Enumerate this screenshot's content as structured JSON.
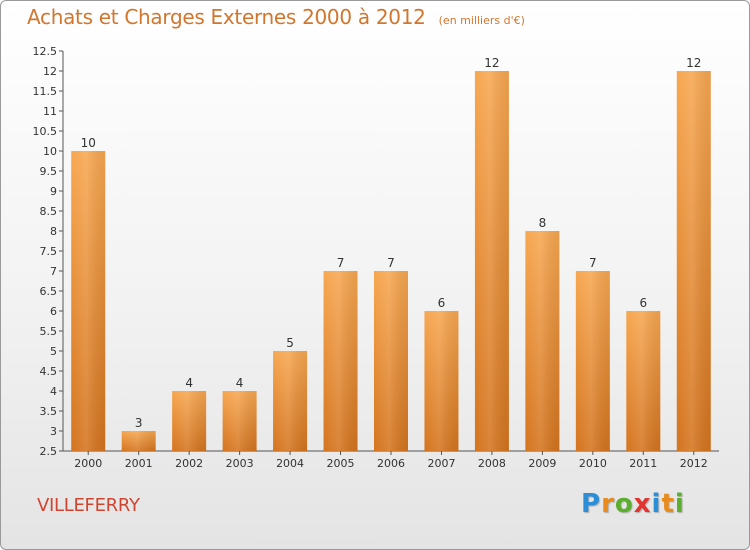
{
  "title": "Achats et Charges Externes 2000 à 2012",
  "subtitle": "(en milliers d'€)",
  "commune": "VILLEFERRY",
  "logo": {
    "text": "Proxiti",
    "letters": [
      {
        "ch": "P",
        "color": "#2a8fd8"
      },
      {
        "ch": "r",
        "color": "#e98b1c"
      },
      {
        "ch": "o",
        "color": "#5cae2f"
      },
      {
        "ch": "x",
        "color": "#e2352f"
      },
      {
        "ch": "i",
        "color": "#2a8fd8"
      },
      {
        "ch": "t",
        "color": "#e98b1c"
      },
      {
        "ch": "i",
        "color": "#5cae2f"
      }
    ]
  },
  "colors": {
    "bar_light": "#f7a751",
    "bar_dark": "#d4741f",
    "axis": "#555555",
    "text": "#333333",
    "grid": "#c9c9c9"
  },
  "chart_data": {
    "type": "bar",
    "categories": [
      "2000",
      "2001",
      "2002",
      "2003",
      "2004",
      "2005",
      "2006",
      "2007",
      "2008",
      "2009",
      "2010",
      "2011",
      "2012"
    ],
    "values": [
      10,
      3,
      4,
      4,
      5,
      7,
      7,
      6,
      12,
      8,
      7,
      6,
      12
    ],
    "data_labels": [
      "10",
      "3",
      "4",
      "4",
      "5",
      "7",
      "7",
      "6",
      "12",
      "8",
      "7",
      "6",
      "12"
    ],
    "title": "Achats et Charges Externes 2000 à 2012",
    "subtitle": "(en milliers d'€)",
    "xlabel": "",
    "ylabel": "",
    "ylim": [
      2.5,
      12.5
    ],
    "yticks": [
      2.5,
      3,
      3.5,
      4,
      4.5,
      5,
      5.5,
      6,
      6.5,
      7,
      7.5,
      8,
      8.5,
      9,
      9.5,
      10,
      10.5,
      11,
      11.5,
      12,
      12.5
    ],
    "ytick_labels": [
      "2.5",
      "3",
      "3.5",
      "4",
      "4.5",
      "5",
      "5.5",
      "6",
      "6.5",
      "7",
      "7.5",
      "8",
      "8.5",
      "9",
      "9.5",
      "10",
      "10.5",
      "11",
      "11.5",
      "12",
      "12.5"
    ],
    "grid": false,
    "legend": "none"
  }
}
